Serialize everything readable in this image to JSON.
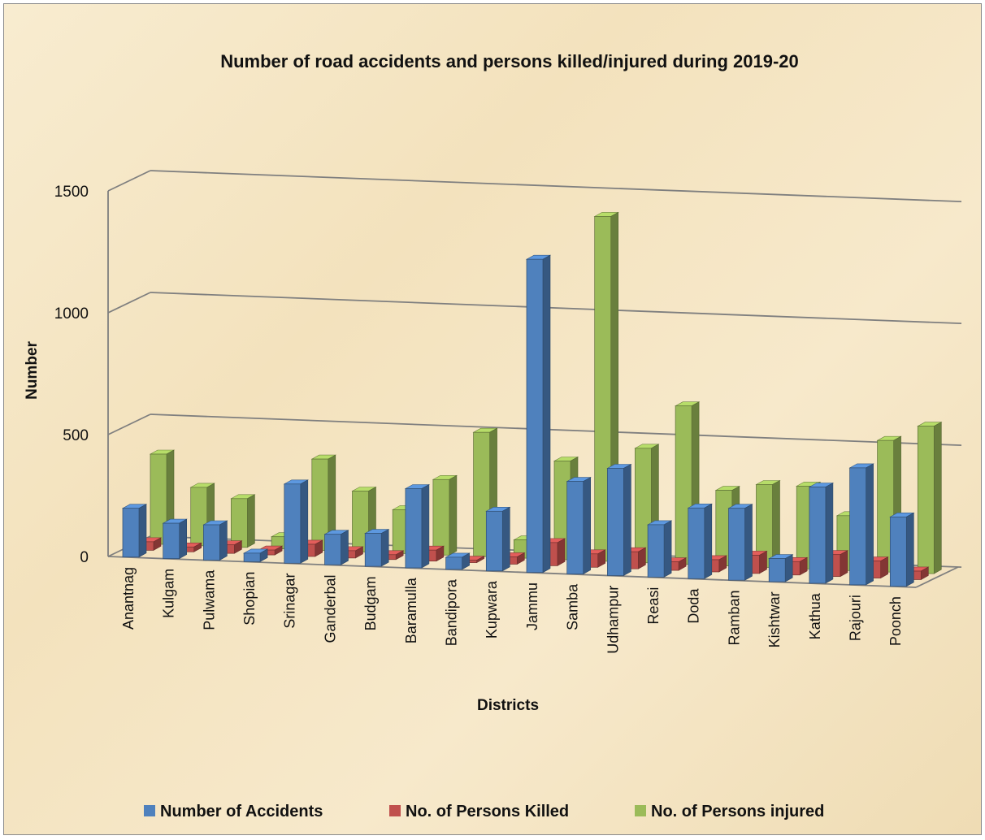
{
  "chart_data": {
    "type": "bar",
    "subtype": "3d-clustered-column",
    "title": "Number of road accidents and persons killed/injured during 2019-20",
    "xlabel": "Districts",
    "ylabel": "Number",
    "ylim": [
      0,
      1500
    ],
    "yticks": [
      0,
      500,
      1000,
      1500
    ],
    "grid": true,
    "legend_position": "bottom",
    "categories": [
      "Anantnag",
      "Kulgam",
      "Pulwama",
      "Shopian",
      "Srinagar",
      "Ganderbal",
      "Budgam",
      "Baramulla",
      "Bandipora",
      "Kupwara",
      "Jammu",
      "Samba",
      "Udhampur",
      "Reasi",
      "Doda",
      "Ramban",
      "Kishtwar",
      "Kathua",
      "Rajouri",
      "Poonch"
    ],
    "series": [
      {
        "name": "Number of Accidents",
        "color": "#4f81bd",
        "values": [
          200,
          145,
          145,
          35,
          325,
          125,
          135,
          325,
          50,
          245,
          1285,
          380,
          440,
          215,
          290,
          295,
          95,
          395,
          480,
          285
        ]
      },
      {
        "name": "No. of  Persons Killed",
        "color": "#c0504d",
        "values": [
          35,
          20,
          35,
          20,
          50,
          30,
          20,
          45,
          10,
          30,
          95,
          55,
          70,
          35,
          50,
          75,
          55,
          90,
          70,
          35
        ]
      },
      {
        "name": "No. of  Persons injured",
        "color": "#9bbb59",
        "values": [
          370,
          240,
          200,
          50,
          375,
          250,
          180,
          310,
          510,
          75,
          405,
          1415,
          470,
          650,
          310,
          340,
          340,
          225,
          540,
          605
        ]
      }
    ]
  }
}
